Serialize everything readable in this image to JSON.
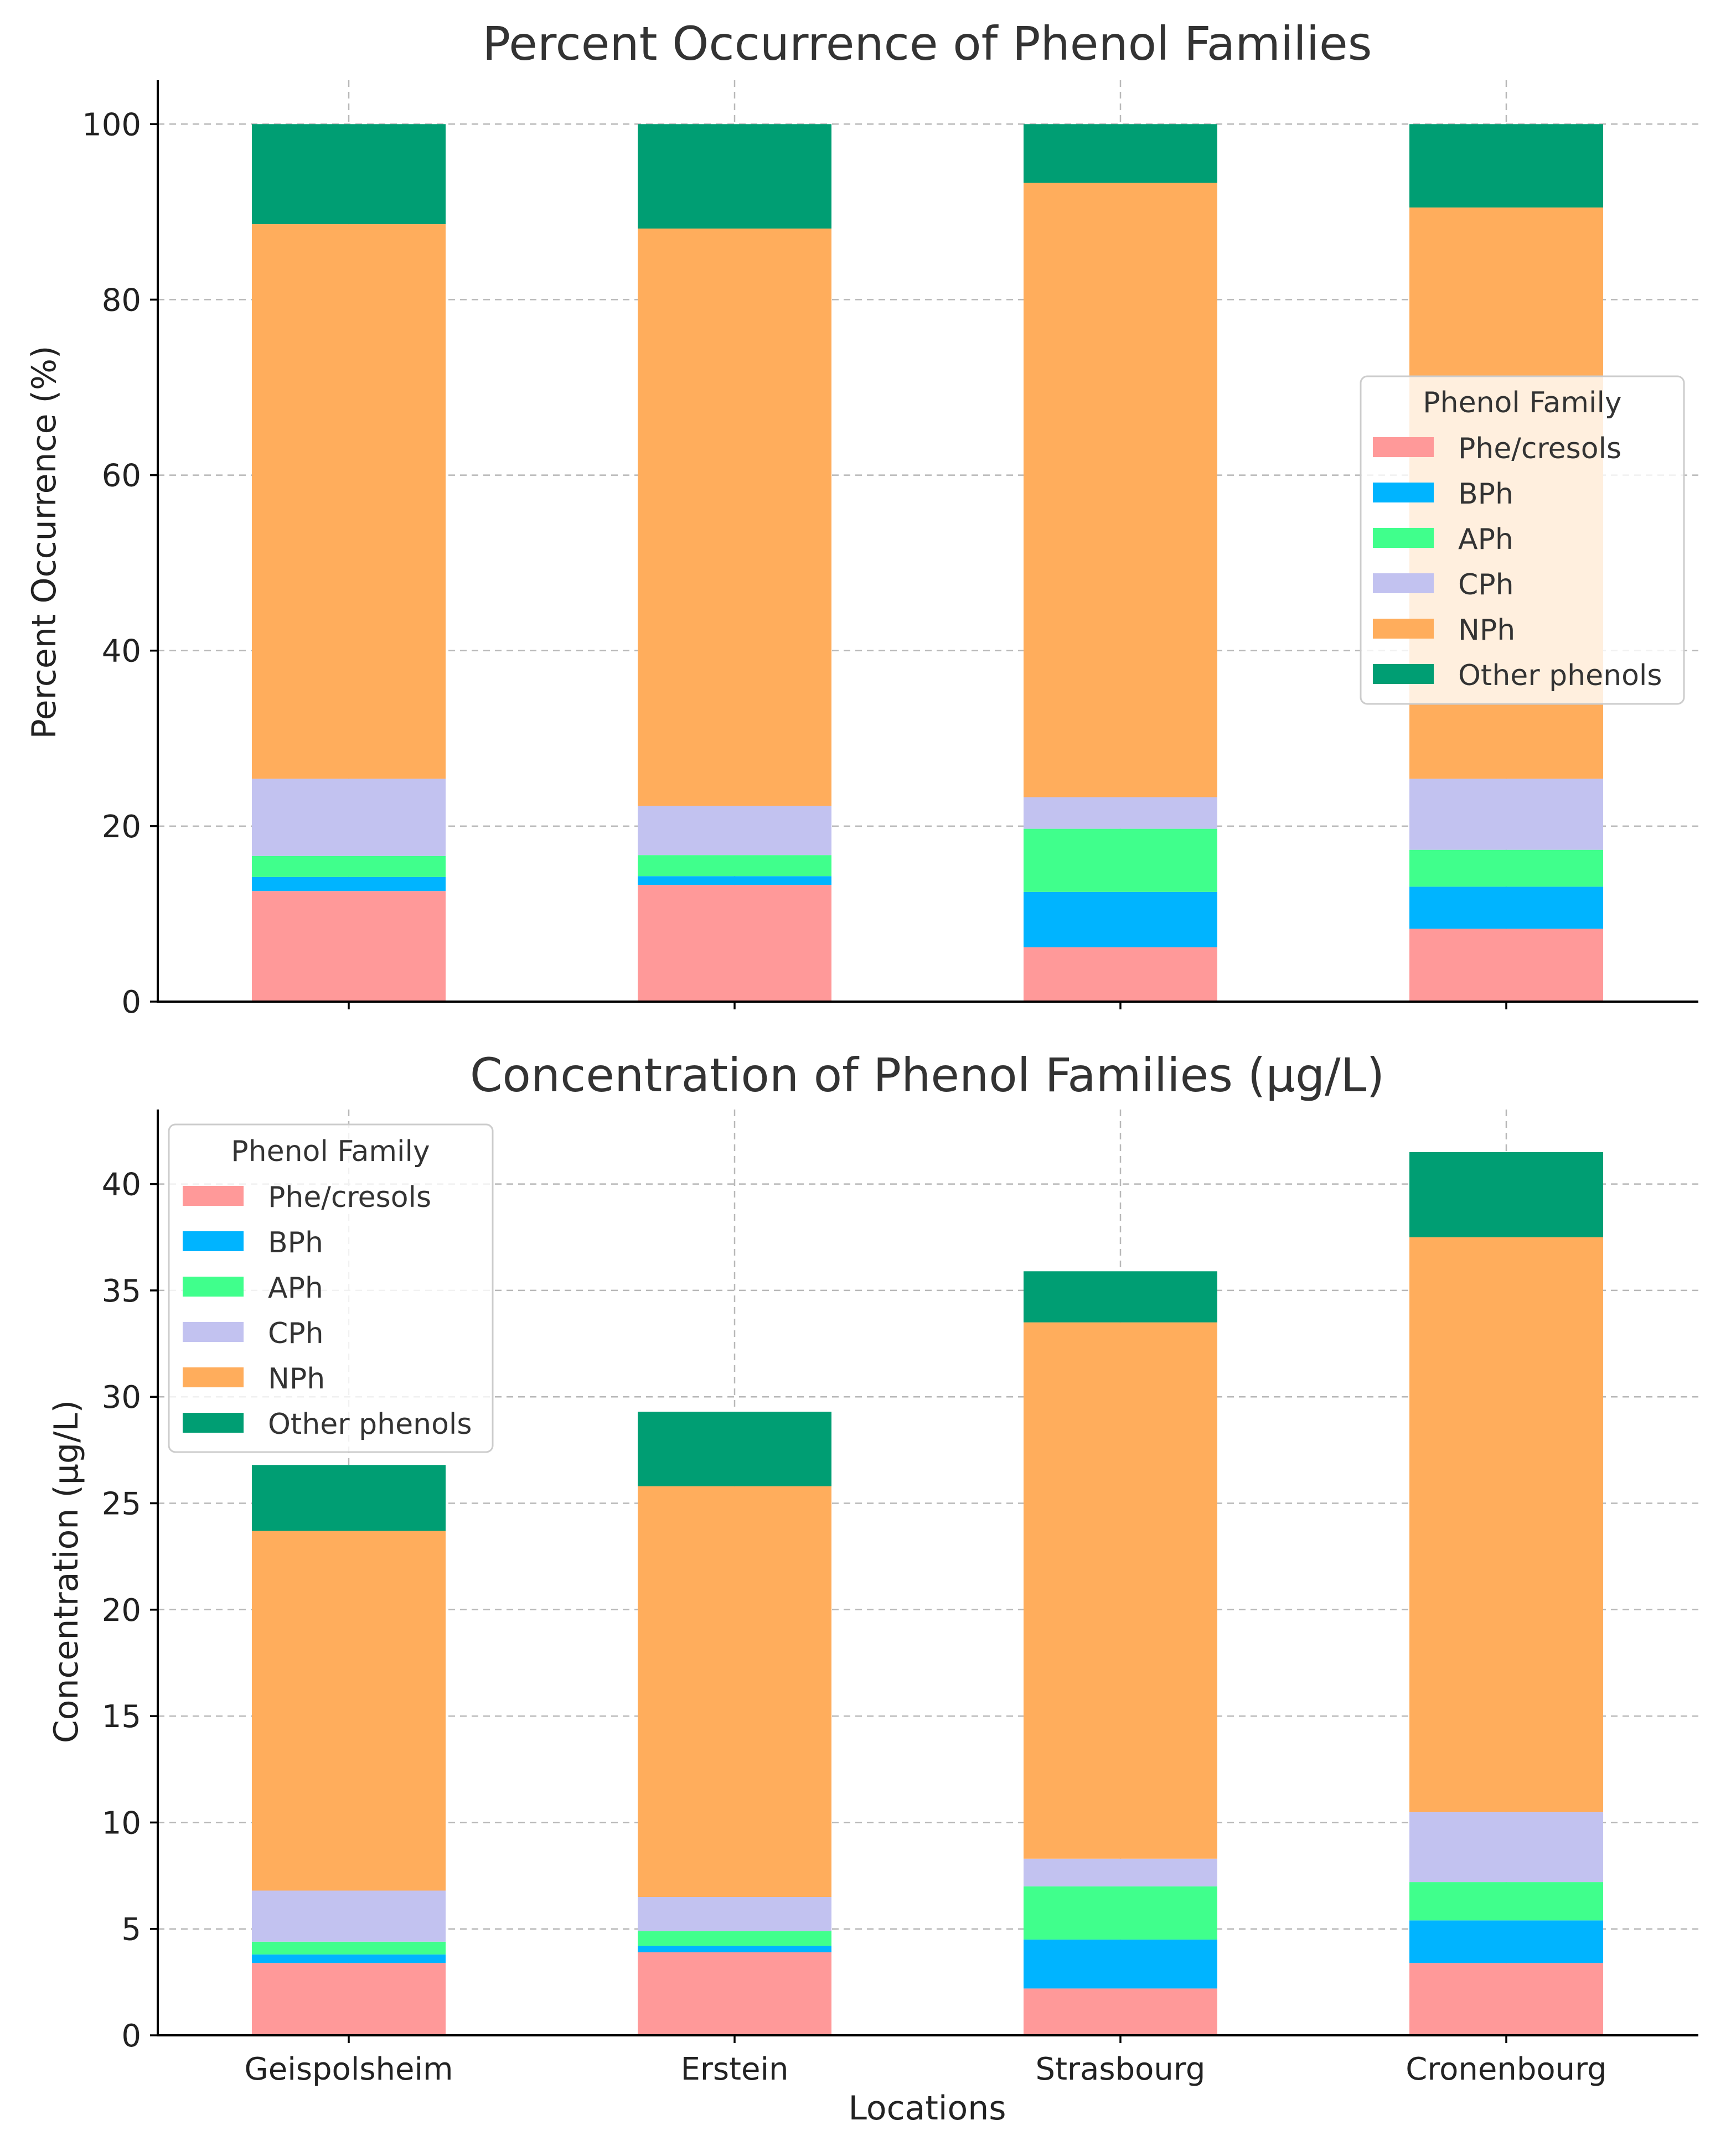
{
  "chart_data": [
    {
      "type": "bar",
      "stacked": true,
      "title": "Percent Occurrence of Phenol Families",
      "xlabel": "",
      "ylabel": "Percent Occurrence (%)",
      "ylim": [
        0,
        105
      ],
      "yticks": [
        0,
        20,
        40,
        60,
        80,
        100
      ],
      "grid": true,
      "categories": [
        "Geispolsheim",
        "Erstein",
        "Strasbourg",
        "Cronenbourg"
      ],
      "legend": {
        "title": "Phenol Family",
        "placement": "center-right"
      },
      "series": [
        {
          "name": "Phe/cresols",
          "color": "#ff9999",
          "values": [
            12.6,
            13.3,
            6.2,
            8.3
          ]
        },
        {
          "name": "BPh",
          "color": "#00b4ff",
          "values": [
            1.6,
            1.0,
            6.3,
            4.8
          ]
        },
        {
          "name": "APh",
          "color": "#40ff8c",
          "values": [
            2.4,
            2.4,
            7.2,
            4.2
          ]
        },
        {
          "name": "CPh",
          "color": "#c2c2f0",
          "values": [
            8.8,
            5.6,
            3.6,
            8.1
          ]
        },
        {
          "name": "NPh",
          "color": "#ffad5c",
          "values": [
            63.2,
            65.8,
            70.0,
            65.1
          ]
        },
        {
          "name": "Other phenols",
          "color": "#009e73",
          "values": [
            11.4,
            11.9,
            6.7,
            9.5
          ]
        }
      ]
    },
    {
      "type": "bar",
      "stacked": true,
      "title": "Concentration of Phenol Families (µg/L)",
      "xlabel": "Locations",
      "ylabel": "Concentration (µg/L)",
      "ylim": [
        0,
        43.5
      ],
      "yticks": [
        0,
        5,
        10,
        15,
        20,
        25,
        30,
        35,
        40
      ],
      "grid": true,
      "categories": [
        "Geispolsheim",
        "Erstein",
        "Strasbourg",
        "Cronenbourg"
      ],
      "legend": {
        "title": "Phenol Family",
        "placement": "upper-left"
      },
      "series": [
        {
          "name": "Phe/cresols",
          "color": "#ff9999",
          "values": [
            3.4,
            3.9,
            2.2,
            3.4
          ]
        },
        {
          "name": "BPh",
          "color": "#00b4ff",
          "values": [
            0.4,
            0.3,
            2.3,
            2.0
          ]
        },
        {
          "name": "APh",
          "color": "#40ff8c",
          "values": [
            0.6,
            0.7,
            2.5,
            1.8
          ]
        },
        {
          "name": "CPh",
          "color": "#c2c2f0",
          "values": [
            2.4,
            1.6,
            1.3,
            3.3
          ]
        },
        {
          "name": "NPh",
          "color": "#ffad5c",
          "values": [
            16.9,
            19.3,
            25.2,
            27.0
          ]
        },
        {
          "name": "Other phenols",
          "color": "#009e73",
          "values": [
            3.1,
            3.5,
            2.4,
            4.0
          ]
        }
      ]
    }
  ]
}
